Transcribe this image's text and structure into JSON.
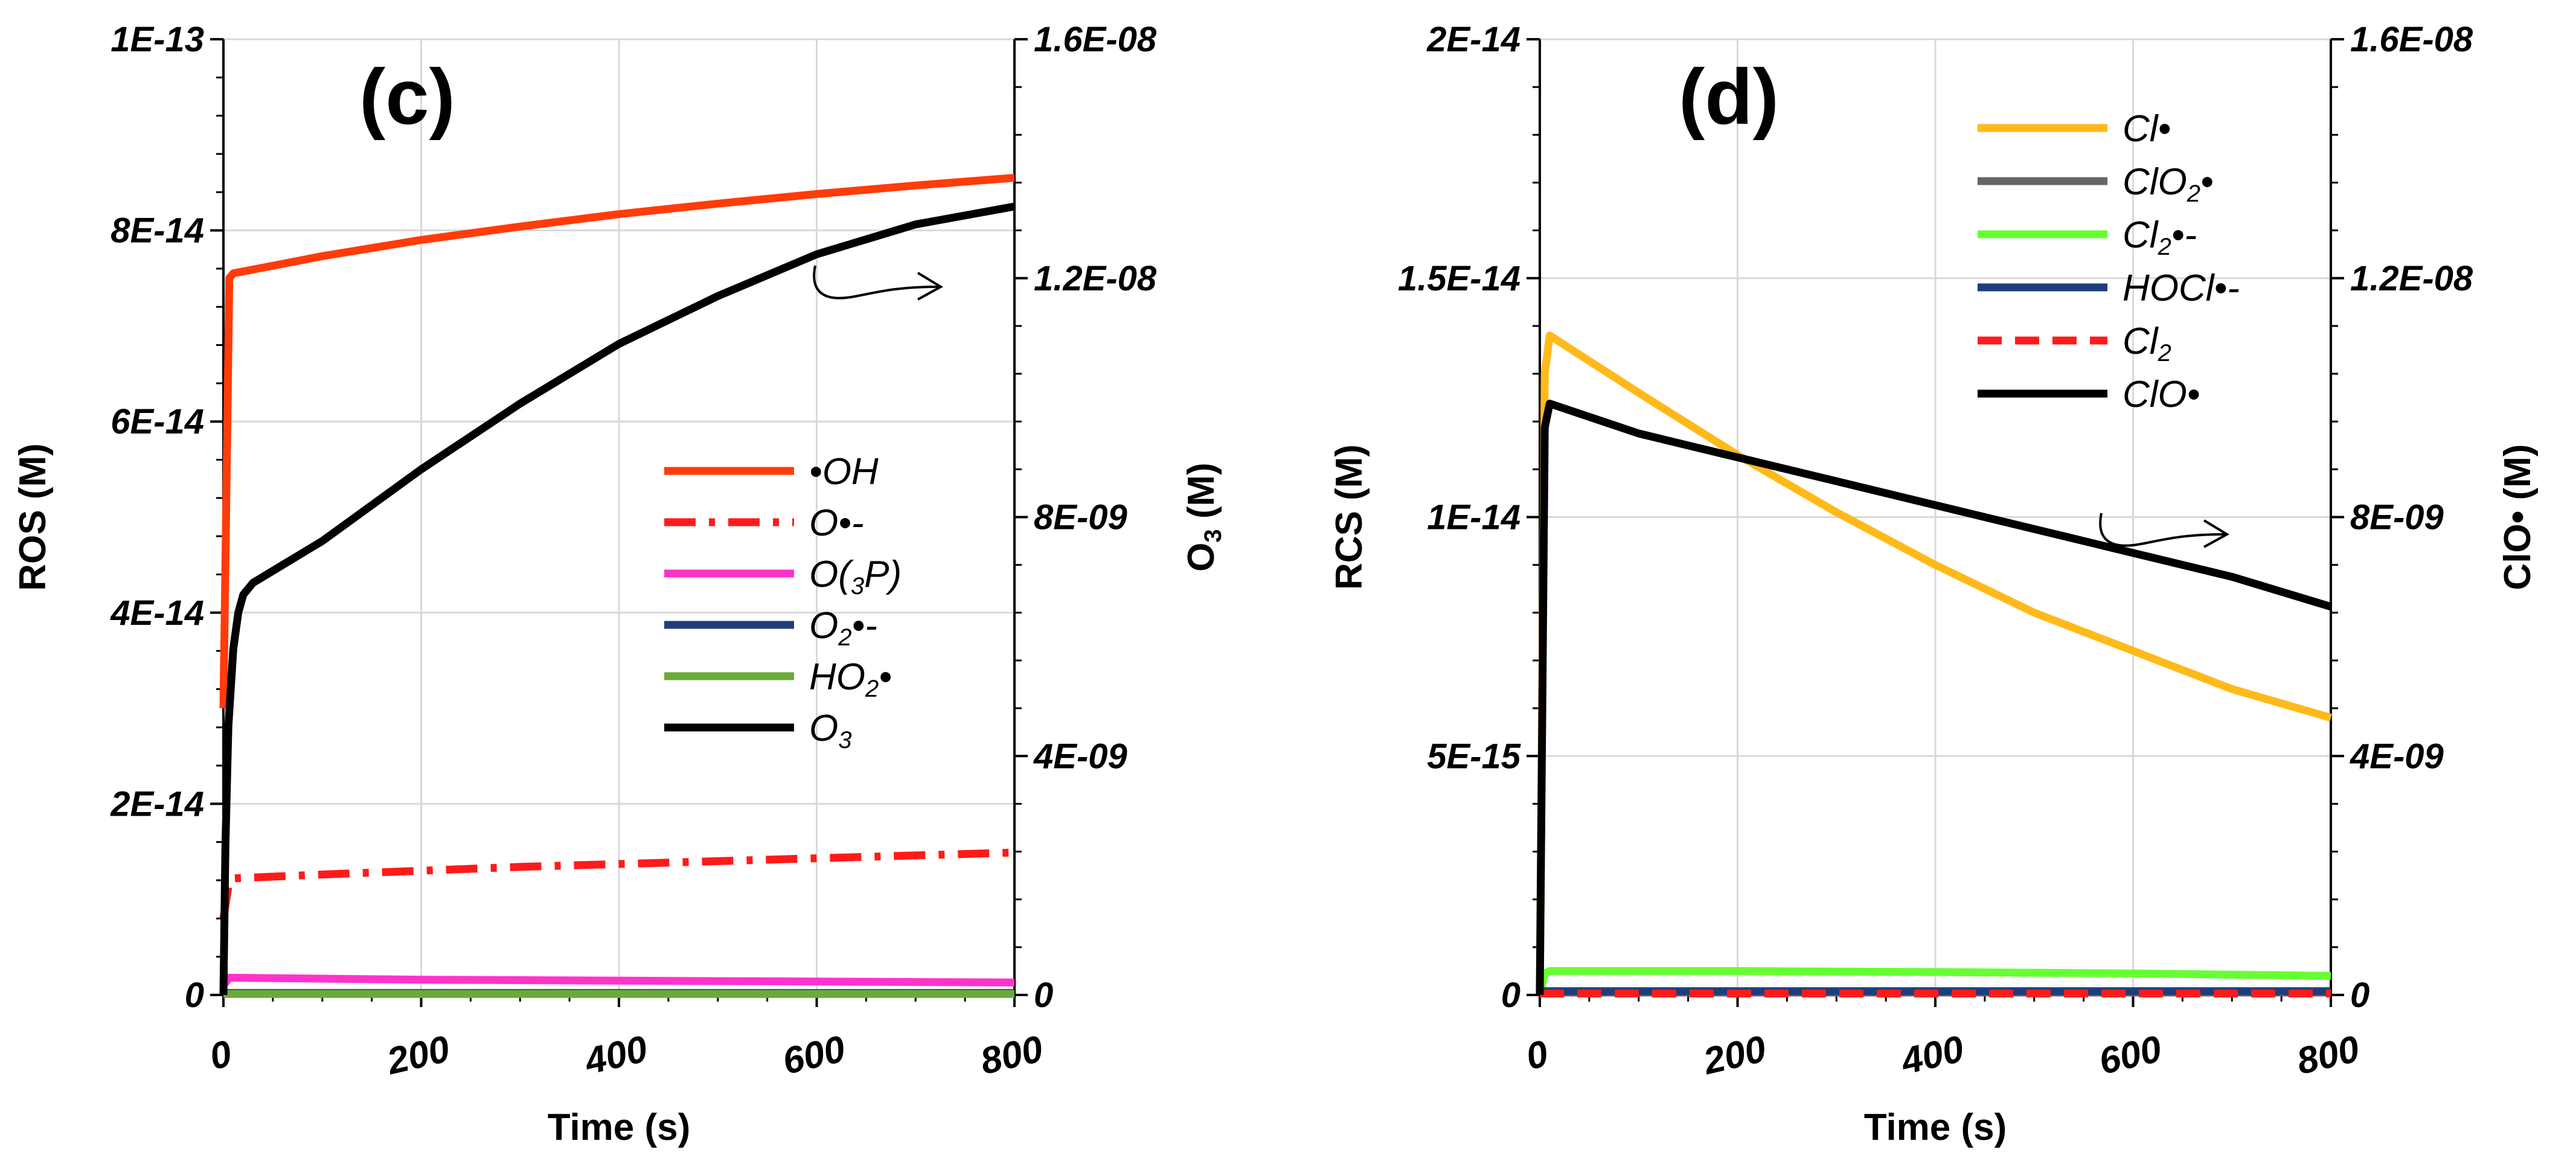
{
  "chart_data": [
    {
      "type": "line",
      "panel_label": "(c)",
      "xlabel": "Time (s)",
      "ylabel": "ROS (M)",
      "y2label_main": "O",
      "y2label_sub": "3",
      "y2label_tail": " (M)",
      "xlim": [
        0,
        800
      ],
      "ylim": [
        0,
        1e-13
      ],
      "y2lim": [
        0,
        1.6e-08
      ],
      "xticks": [
        0,
        200,
        400,
        600,
        800
      ],
      "xtick_labels": [
        "0",
        "200",
        "400",
        "600",
        "800"
      ],
      "yticks": [
        0,
        2e-14,
        4e-14,
        6e-14,
        8e-14,
        1e-13
      ],
      "ytick_labels": [
        "0",
        "2E-14",
        "4E-14",
        "6E-14",
        "8E-14",
        "1E-13"
      ],
      "y2ticks": [
        0,
        4e-09,
        8e-09,
        1.2e-08,
        1.6e-08
      ],
      "y2tick_labels": [
        "0",
        "4E-09",
        "8E-09",
        "1.2E-08",
        "1.6E-08"
      ],
      "grid": true,
      "legend_position": "center-right",
      "arrow_annotation": "points-right-to-O3-axis",
      "series": [
        {
          "name": "•OH",
          "legend_main": "•OH",
          "legend_sub": "",
          "legend_tail": "",
          "color": "#ff3b0a",
          "dash": "solid",
          "axis": "left",
          "x": [
            0,
            6,
            10,
            100,
            200,
            300,
            400,
            500,
            600,
            700,
            800
          ],
          "y": [
            3e-14,
            7.5e-14,
            7.55e-14,
            7.73e-14,
            7.9e-14,
            8.04e-14,
            8.17e-14,
            8.28e-14,
            8.38e-14,
            8.47e-14,
            8.55e-14
          ]
        },
        {
          "name": "O•-",
          "legend_main": "O•-",
          "legend_sub": "",
          "legend_tail": "",
          "color": "#ff1a1a",
          "dash": "dashdot",
          "axis": "left",
          "x": [
            0,
            6,
            10,
            100,
            200,
            300,
            400,
            500,
            600,
            700,
            800
          ],
          "y": [
            8e-15,
            1.2e-14,
            1.22e-14,
            1.26e-14,
            1.3e-14,
            1.34e-14,
            1.37e-14,
            1.4e-14,
            1.43e-14,
            1.46e-14,
            1.49e-14
          ]
        },
        {
          "name": "O(3P)",
          "legend_main": "O(",
          "legend_sub": "3",
          "legend_tail": "P)",
          "color": "#ff33cc",
          "dash": "solid",
          "axis": "left",
          "x": [
            0,
            6,
            10,
            200,
            400,
            600,
            800
          ],
          "y": [
            1e-15,
            1.8e-15,
            1.8e-15,
            1.6e-15,
            1.5e-15,
            1.4e-15,
            1.3e-15
          ]
        },
        {
          "name": "O2•-",
          "legend_main": "O",
          "legend_sub": "2",
          "legend_tail": "•-",
          "color": "#1f3d7a",
          "dash": "solid",
          "axis": "left",
          "x": [
            0,
            800
          ],
          "y": [
            2e-16,
            2e-16
          ]
        },
        {
          "name": "HO2•",
          "legend_main": "HO",
          "legend_sub": "2",
          "legend_tail": "•",
          "color": "#6aaa3a",
          "dash": "solid",
          "axis": "left",
          "x": [
            0,
            800
          ],
          "y": [
            1e-16,
            1e-16
          ]
        },
        {
          "name": "O3",
          "legend_main": "O",
          "legend_sub": "3",
          "legend_tail": "",
          "color": "#000000",
          "dash": "solid",
          "axis": "right",
          "x": [
            0,
            2,
            5,
            10,
            15,
            20,
            30,
            50,
            100,
            200,
            300,
            400,
            500,
            600,
            700,
            800
          ],
          "y": [
            0,
            2.5e-09,
            4.5e-09,
            5.8e-09,
            6.4e-09,
            6.7e-09,
            6.9e-09,
            7.1e-09,
            7.6e-09,
            8.8e-09,
            9.9e-09,
            1.09e-08,
            1.17e-08,
            1.24e-08,
            1.29e-08,
            1.32e-08
          ]
        }
      ]
    },
    {
      "type": "line",
      "panel_label": "(d)",
      "xlabel": "Time (s)",
      "ylabel": "RCS (M)",
      "y2label_main": "ClO• (M)",
      "y2label_sub": "",
      "y2label_tail": "",
      "xlim": [
        0,
        800
      ],
      "ylim": [
        0,
        2e-14
      ],
      "y2lim": [
        0,
        1.6e-08
      ],
      "xticks": [
        0,
        200,
        400,
        600,
        800
      ],
      "xtick_labels": [
        "0",
        "200",
        "400",
        "600",
        "800"
      ],
      "yticks": [
        0,
        5e-15,
        1e-14,
        1.5e-14,
        2e-14
      ],
      "ytick_labels": [
        "0",
        "5E-15",
        "1E-14",
        "1.5E-14",
        "2E-14"
      ],
      "y2ticks": [
        0,
        4e-09,
        8e-09,
        1.2e-08,
        1.6e-08
      ],
      "y2tick_labels": [
        "0",
        "4E-09",
        "8E-09",
        "1.2E-08",
        "1.6E-08"
      ],
      "grid": true,
      "legend_position": "top-right",
      "arrow_annotation": "points-right-to-ClO-axis",
      "series": [
        {
          "name": "Cl•",
          "legend_main": "Cl•",
          "legend_sub": "",
          "legend_tail": "",
          "color": "#ffba1a",
          "dash": "solid",
          "axis": "left",
          "x": [
            0,
            5,
            10,
            100,
            200,
            300,
            400,
            500,
            600,
            700,
            800
          ],
          "y": [
            0,
            1.3e-14,
            1.38e-14,
            1.26e-14,
            1.13e-14,
            1.01e-14,
            9e-15,
            8e-15,
            7.2e-15,
            6.4e-15,
            5.8e-15
          ]
        },
        {
          "name": "ClO2•",
          "legend_main": "ClO",
          "legend_sub": "2",
          "legend_tail": "•",
          "color": "#666666",
          "dash": "solid",
          "axis": "left",
          "x": [
            0,
            800
          ],
          "y": [
            5e-17,
            5e-17
          ]
        },
        {
          "name": "Cl2•-",
          "legend_main": "Cl",
          "legend_sub": "2",
          "legend_tail": "•-",
          "color": "#66ff33",
          "dash": "solid",
          "axis": "left",
          "x": [
            0,
            5,
            10,
            200,
            400,
            600,
            800
          ],
          "y": [
            0,
            4.5e-16,
            5e-16,
            5e-16,
            4.8e-16,
            4.5e-16,
            4e-16
          ]
        },
        {
          "name": "HOCl•-",
          "legend_main": "HOCl•-",
          "legend_sub": "",
          "legend_tail": "",
          "color": "#1f3d7a",
          "dash": "solid",
          "axis": "left",
          "x": [
            0,
            800
          ],
          "y": [
            8e-17,
            8e-17
          ]
        },
        {
          "name": "Cl2",
          "legend_main": "Cl",
          "legend_sub": "2",
          "legend_tail": "",
          "color": "#ff1a1a",
          "dash": "dashed",
          "axis": "left",
          "x": [
            0,
            800
          ],
          "y": [
            3e-17,
            3e-17
          ]
        },
        {
          "name": "ClO•",
          "legend_main": "ClO•",
          "legend_sub": "",
          "legend_tail": "",
          "color": "#000000",
          "dash": "solid",
          "axis": "right",
          "x": [
            0,
            5,
            10,
            100,
            200,
            300,
            400,
            500,
            600,
            700,
            800
          ],
          "y": [
            0,
            9.5e-09,
            9.9e-09,
            9.4e-09,
            9e-09,
            8.6e-09,
            8.2e-09,
            7.8e-09,
            7.4e-09,
            7e-09,
            6.5e-09
          ]
        }
      ]
    }
  ]
}
